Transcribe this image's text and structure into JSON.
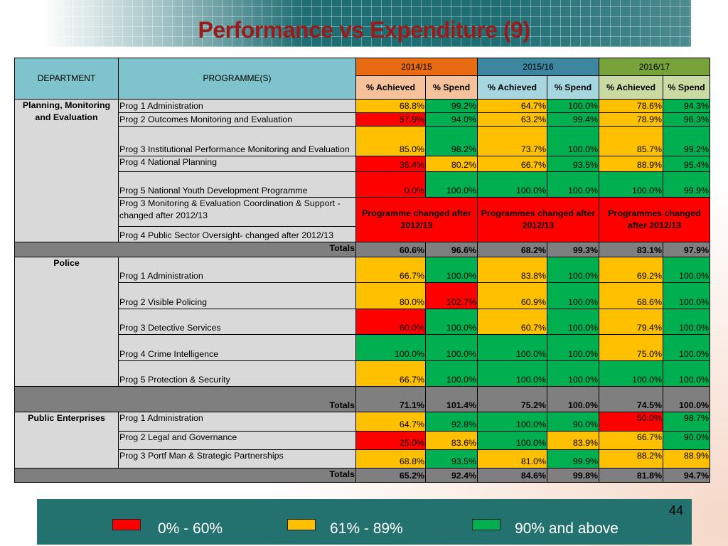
{
  "title": "Performance vs Expenditure (9)",
  "colors": {
    "red": "#ff0000",
    "amber": "#ffc000",
    "green": "#00b050",
    "title": "#9b1b1b",
    "year1": "#e86b12",
    "year2": "#3d86a0",
    "year3": "#78a33a"
  },
  "headers": {
    "department": "DEPARTMENT",
    "programme": "PROGRAMME(S)",
    "years": [
      "2014/15",
      "2015/16",
      "2016/17"
    ],
    "sub": [
      "% Achieved",
      "%  Spend",
      "% Achieved",
      "% Spend",
      "% Achieved",
      "% Spend"
    ]
  },
  "sections": [
    {
      "department": "Planning, Monitoring and Evaluation",
      "rows": [
        {
          "programme": "Prog 1 Administration",
          "values": [
            "68.8%",
            "99.2%",
            "64.7%",
            "100.0%",
            "78.6%",
            "94.3%"
          ],
          "status": [
            "amber",
            "green",
            "amber",
            "green",
            "amber",
            "green"
          ]
        },
        {
          "programme": "Prog 2 Outcomes Monitoring and Evaluation",
          "values": [
            "57.9%",
            "94.0%",
            "63.2%",
            "99.4%",
            "78.9%",
            "96.3%"
          ],
          "status": [
            "red",
            "green",
            "amber",
            "green",
            "amber",
            "green"
          ]
        },
        {
          "programme": "Prog 3 Institutional Performance Monitoring and Evaluation",
          "values": [
            "85.0%",
            "98.2%",
            "73.7%",
            "100.0%",
            "85.7%",
            "99.2%"
          ],
          "status": [
            "amber",
            "green",
            "amber",
            "green",
            "amber",
            "green"
          ]
        },
        {
          "programme": "Prog 4 National Planning",
          "values": [
            "36.4%",
            "80.2%",
            "66.7%",
            "93.5%",
            "88.9%",
            "95.4%"
          ],
          "status": [
            "red",
            "amber",
            "amber",
            "green",
            "amber",
            "green"
          ]
        },
        {
          "programme": "Prog 5 National Youth Development Programme",
          "values": [
            "0.0%",
            "100.0%",
            "100.0%",
            "100.0%",
            "100.0%",
            "99.9%"
          ],
          "status": [
            "red",
            "green",
            "green",
            "green",
            "green",
            "green"
          ]
        },
        {
          "programme": "Prog 3 Monitoring & Evaluation Coordination & Support - changed after 2012/13"
        },
        {
          "programme": "Prog 4 Public Sector Oversight- changed after 2012/13"
        }
      ],
      "changed_notes": [
        "Programme changed after 2012/13",
        "Programmes changed after 2012/13",
        "Programmes changed after 2012/13"
      ],
      "totals": {
        "label": "Totals",
        "values": [
          "60.6%",
          "96.6%",
          "68.2%",
          "99.3%",
          "83.1%",
          "97.9%"
        ]
      }
    },
    {
      "department": "Police",
      "rows": [
        {
          "programme": "Prog 1 Administration",
          "values": [
            "66.7%",
            "100.0%",
            "83.8%",
            "100.0%",
            "69.2%",
            "100.0%"
          ],
          "status": [
            "amber",
            "green",
            "amber",
            "green",
            "amber",
            "green"
          ]
        },
        {
          "programme": "Prog 2 Visible Policing",
          "values": [
            "80.0%",
            "102.7%",
            "60.9%",
            "100.0%",
            "68.6%",
            "100.0%"
          ],
          "status": [
            "amber",
            "red",
            "amber",
            "green",
            "amber",
            "green"
          ]
        },
        {
          "programme": "Prog 3 Detective Services",
          "values": [
            "60.0%",
            "100.0%",
            "60.7%",
            "100.0%",
            "79.4%",
            "100.0%"
          ],
          "status": [
            "red",
            "green",
            "amber",
            "green",
            "amber",
            "green"
          ]
        },
        {
          "programme": "Prog 4 Crime Intelligence",
          "values": [
            "100.0%",
            "100.0%",
            "100.0%",
            "100.0%",
            "75.0%",
            "100.0%"
          ],
          "status": [
            "green",
            "green",
            "green",
            "green",
            "amber",
            "green"
          ]
        },
        {
          "programme": "Prog 5 Protection & Security",
          "values": [
            "66.7%",
            "100.0%",
            "100.0%",
            "100.0%",
            "100.0%",
            "100.0%"
          ],
          "status": [
            "amber",
            "green",
            "green",
            "green",
            "green",
            "green"
          ]
        }
      ],
      "totals": {
        "label": "Totals",
        "values": [
          "71.1%",
          "101.4%",
          "75.2%",
          "100.0%",
          "74.5%",
          "100.0%"
        ]
      }
    },
    {
      "department": "Public Enterprises",
      "rows": [
        {
          "programme": "Prog 1 Administration",
          "values": [
            "64.7%",
            "92.8%",
            "100.0%",
            "90.0%",
            "50.0%",
            "98.7%"
          ],
          "status": [
            "amber",
            "green",
            "green",
            "green",
            "red",
            "green"
          ]
        },
        {
          "programme": "Prog 2 Legal and Governance",
          "values": [
            "25.0%",
            "83.6%",
            "100.0%",
            "83.9%",
            "66.7%",
            "90.0%"
          ],
          "status": [
            "red",
            "amber",
            "green",
            "amber",
            "amber",
            "green"
          ]
        },
        {
          "programme": "Prog 3 Portf Man & Strategic Partnerships",
          "values": [
            "68.8%",
            "93.5%",
            "81.0%",
            "99.9%",
            "88.2%",
            "88.9%"
          ],
          "status": [
            "amber",
            "green",
            "amber",
            "green",
            "amber",
            "amber"
          ]
        }
      ],
      "totals": {
        "label": "Totals",
        "values": [
          "65.2%",
          "92.4%",
          "84.6%",
          "99.8%",
          "81.8%",
          "94.7%"
        ]
      }
    }
  ],
  "legend": [
    {
      "label": "0% - 60%",
      "color": "#ff0000"
    },
    {
      "label": "61% - 89%",
      "color": "#ffc000"
    },
    {
      "label": "90% and above",
      "color": "#00b050"
    }
  ],
  "page_number": "44"
}
